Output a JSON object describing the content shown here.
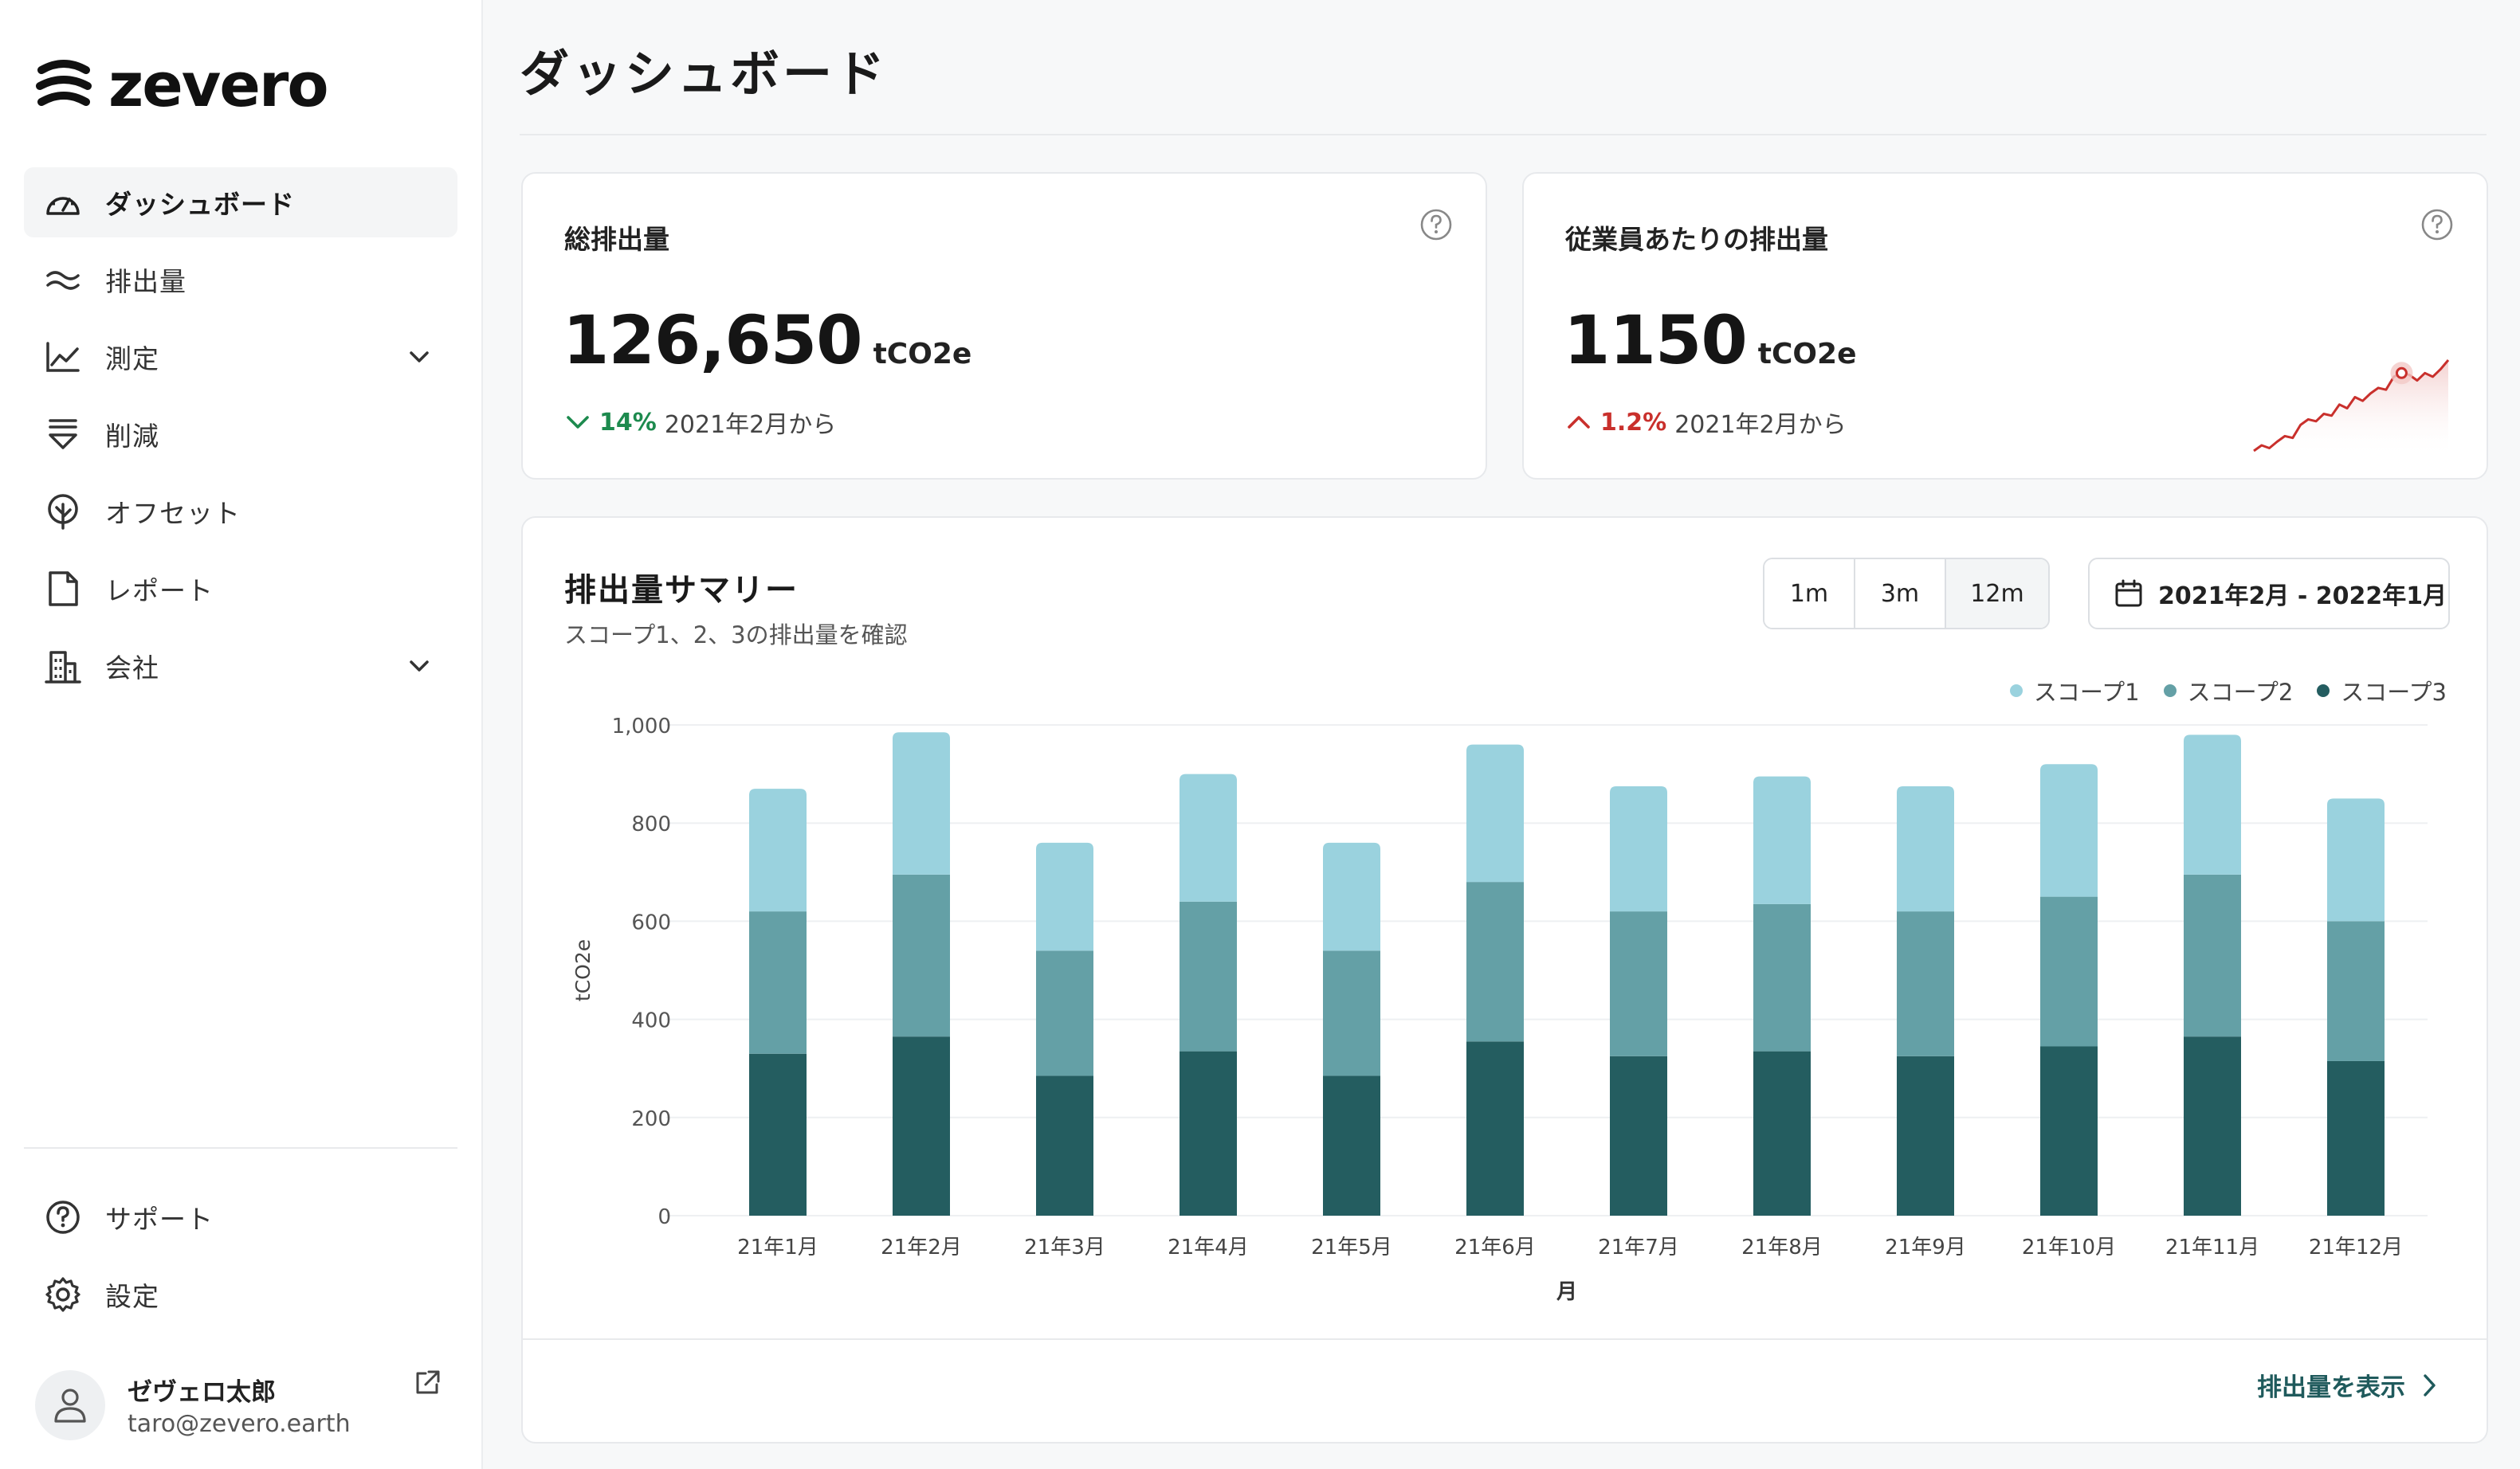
{
  "brand": {
    "name": "zevero"
  },
  "page": {
    "title": "ダッシュボード"
  },
  "sidebar": {
    "items": [
      {
        "label": "ダッシュボード",
        "icon": "gauge-icon",
        "active": true
      },
      {
        "label": "排出量",
        "icon": "waves-icon"
      },
      {
        "label": "測定",
        "icon": "line-chart-icon",
        "expandable": true
      },
      {
        "label": "削減",
        "icon": "reduce-icon"
      },
      {
        "label": "オフセット",
        "icon": "tree-icon"
      },
      {
        "label": "レポート",
        "icon": "document-icon"
      },
      {
        "label": "会社",
        "icon": "building-icon",
        "expandable": true
      }
    ],
    "bottom_items": [
      {
        "label": "サポート",
        "icon": "help-icon"
      },
      {
        "label": "設定",
        "icon": "gear-icon"
      }
    ],
    "user": {
      "name": "ゼヴェロ太郎",
      "email": "taro@zevero.earth"
    }
  },
  "kpis": [
    {
      "label": "総排出量",
      "value": "126,650",
      "unit": "tCO2e",
      "delta_pct": "14%",
      "delta_text": "2021年2月から",
      "direction": "down"
    },
    {
      "label": "従業員あたりの排出量",
      "value": "1150",
      "unit": "tCO2e",
      "delta_pct": "1.2%",
      "delta_text": "2021年2月から",
      "direction": "up",
      "sparkline": [
        12,
        18,
        15,
        22,
        28,
        26,
        40,
        46,
        44,
        52,
        50,
        62,
        58,
        70,
        66,
        74,
        80,
        78,
        92,
        96,
        94,
        88,
        96,
        92,
        100,
        110
      ]
    }
  ],
  "summary": {
    "title": "排出量サマリー",
    "subtitle": "スコープ1、2、3の排出量を確認",
    "ranges": [
      "1m",
      "3m",
      "12m"
    ],
    "selected_range": "12m",
    "date_range": "2021年2月 - 2022年1月",
    "view_link": "排出量を表示"
  },
  "chart_data": {
    "type": "bar",
    "stacked": true,
    "categories": [
      "21年1月",
      "21年2月",
      "21年3月",
      "21年4月",
      "21年5月",
      "21年6月",
      "21年7月",
      "21年8月",
      "21年9月",
      "21年10月",
      "21年11月",
      "21年12月"
    ],
    "series": [
      {
        "name": "スコープ1",
        "color": "#9ad2de",
        "values": [
          250,
          290,
          220,
          260,
          220,
          280,
          255,
          260,
          255,
          270,
          285,
          250
        ]
      },
      {
        "name": "スコープ2",
        "color": "#64a0a6",
        "values": [
          290,
          330,
          255,
          305,
          255,
          325,
          295,
          300,
          295,
          305,
          330,
          285
        ]
      },
      {
        "name": "スコープ3",
        "color": "#245d60",
        "values": [
          330,
          365,
          285,
          335,
          285,
          355,
          325,
          335,
          325,
          345,
          365,
          315
        ]
      }
    ],
    "ylabel": "tCO2e",
    "xlabel": "月",
    "ylim": [
      0,
      1000
    ],
    "yticks": [
      0,
      200,
      400,
      600,
      800,
      "1,000"
    ],
    "legend_position": "top-right",
    "grid": true
  }
}
